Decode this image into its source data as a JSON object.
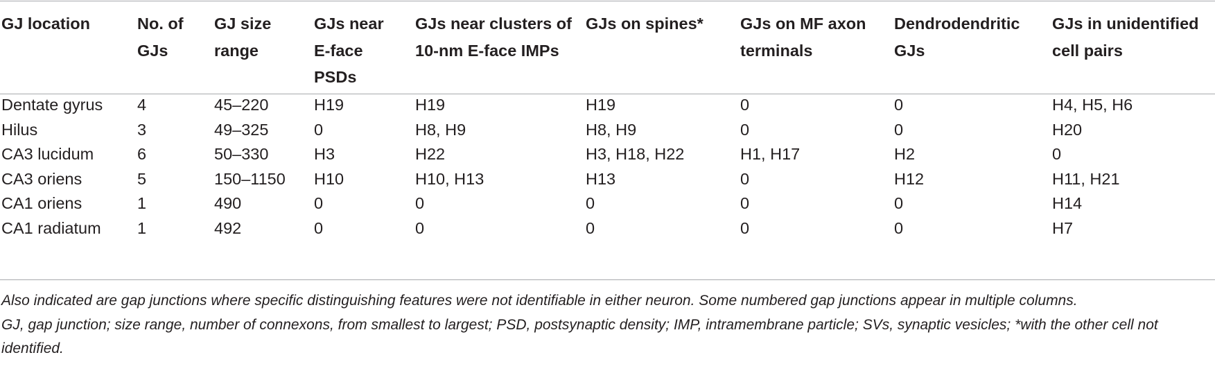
{
  "table": {
    "headers": [
      "GJ location",
      "No. of GJs",
      "GJ size range",
      "GJs near E-face PSDs",
      "GJs near clusters of 10-nm E-face IMPs",
      "GJs on spines*",
      "GJs on MF axon terminals",
      "Dendrodendritic GJs",
      "GJs in unidentified cell pairs"
    ],
    "rows": [
      [
        "Dentate gyrus",
        "4",
        "45–220",
        "H19",
        "H19",
        "H19",
        "0",
        "0",
        "H4, H5, H6"
      ],
      [
        "Hilus",
        "3",
        "49–325",
        "0",
        "H8, H9",
        "H8, H9",
        "0",
        "0",
        "H20"
      ],
      [
        "CA3 lucidum",
        "6",
        "50–330",
        "H3",
        "H22",
        "H3, H18, H22",
        "H1, H17",
        "H2",
        "0"
      ],
      [
        "CA3 oriens",
        "5",
        "150–1150",
        "H10",
        "H10, H13",
        "H13",
        "0",
        "H12",
        "H11, H21"
      ],
      [
        "CA1 oriens",
        "1",
        "490",
        "0",
        "0",
        "0",
        "0",
        "0",
        "H14"
      ],
      [
        "CA1 radiatum",
        "1",
        "492",
        "0",
        "0",
        "0",
        "0",
        "0",
        "H7"
      ]
    ]
  },
  "footnotes": [
    "Also indicated are gap junctions where specific distinguishing features were not identifiable in either neuron. Some numbered gap junctions appear in multiple columns.",
    "GJ, gap junction; size range, number of connexons, from smallest to largest; PSD, postsynaptic density; IMP, intramembrane particle; SVs, synaptic vesicles; *with the other cell not identified."
  ]
}
